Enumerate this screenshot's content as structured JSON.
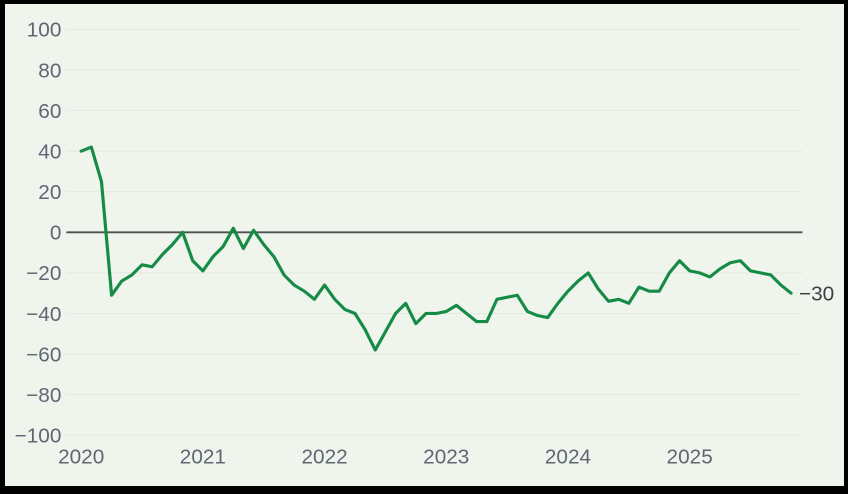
{
  "chart": {
    "background_color": "#eff4ed",
    "grid_color": "#e3eae1",
    "zero_line_color": "#4e524f",
    "axis_label_color": "#5f6774",
    "series_color": "#168b46",
    "end_label_color": "#3d4145",
    "y_tick_labels": [
      "100",
      "80",
      "60",
      "40",
      "20",
      "0",
      "−20",
      "−40",
      "−60",
      "−80",
      "−100"
    ],
    "x_tick_labels": [
      "2020",
      "2021",
      "2022",
      "2023",
      "2024",
      "2025"
    ],
    "end_label": "−30"
  },
  "chart_data": {
    "type": "line",
    "title": "",
    "xlabel": "",
    "ylabel": "",
    "x_start": "2020-01",
    "x_end": "2025-11",
    "frequency": "monthly",
    "ylim": [
      -100,
      100
    ],
    "ytick_values": [
      100,
      80,
      60,
      40,
      20,
      0,
      -20,
      -40,
      -60,
      -80,
      -100
    ],
    "xtick_month_indices": [
      0,
      12,
      24,
      36,
      48,
      60
    ],
    "grid": true,
    "legend_position": "none",
    "series": [
      {
        "name": "monthly-net-balance",
        "values": [
          40,
          42,
          25,
          -31,
          -24,
          -21,
          -16,
          -17,
          -11,
          -6,
          0,
          -14,
          -19,
          -12,
          -7,
          2,
          -8,
          1,
          -6,
          -12,
          -21,
          -26,
          -29,
          -33,
          -26,
          -33,
          -38,
          -40,
          -48,
          -58,
          -49,
          -40,
          -35,
          -45,
          -40,
          -40,
          -39,
          -36,
          -40,
          -44,
          -44,
          -33,
          -32,
          -31,
          -39,
          -41,
          -42,
          -35,
          -29,
          -24,
          -20,
          -28,
          -34,
          -33,
          -35,
          -27,
          -29,
          -29,
          -20,
          -14,
          -19,
          -20,
          -22,
          -18,
          -15,
          -14,
          -19,
          -20,
          -21,
          -26,
          -30
        ]
      }
    ],
    "annotations": [
      {
        "text": "−30",
        "attach": "last-point"
      }
    ]
  }
}
